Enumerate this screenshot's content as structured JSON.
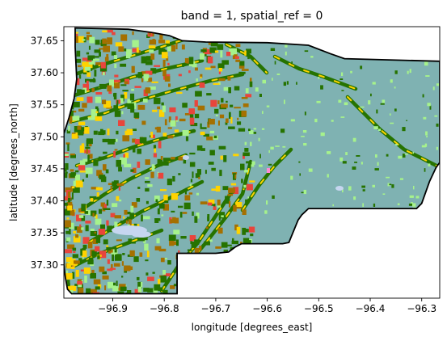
{
  "title": "band = 1, spatial_ref = 0",
  "xlabel": "longitude [degrees_east]",
  "ylabel": "latitude [degrees_north]",
  "x_ticks": [
    {
      "value": -96.9,
      "label": "−96.9"
    },
    {
      "value": -96.8,
      "label": "−96.8"
    },
    {
      "value": -96.7,
      "label": "−96.7"
    },
    {
      "value": -96.6,
      "label": "−96.6"
    },
    {
      "value": -96.5,
      "label": "−96.5"
    },
    {
      "value": -96.4,
      "label": "−96.4"
    },
    {
      "value": -96.3,
      "label": "−96.3"
    }
  ],
  "y_ticks": [
    {
      "value": 37.3,
      "label": "37.30"
    },
    {
      "value": 37.35,
      "label": "37.35"
    },
    {
      "value": 37.4,
      "label": "37.40"
    },
    {
      "value": 37.45,
      "label": "37.45"
    },
    {
      "value": 37.5,
      "label": "37.50"
    },
    {
      "value": 37.55,
      "label": "37.55"
    },
    {
      "value": 37.6,
      "label": "37.60"
    },
    {
      "value": 37.65,
      "label": "37.65"
    }
  ],
  "xlim": [
    -96.995,
    -96.265
  ],
  "ylim": [
    37.248,
    37.672
  ],
  "colors": {
    "grassland": "#7fb2b2",
    "forest": "#267300",
    "crop_yellow": "#ffd300",
    "crop_brown": "#a57000",
    "developed": "#e8453c",
    "light_green": "#a6f28c",
    "water": "#c6d6f0",
    "pink": "#ff8ad2",
    "boundary": "#000000"
  },
  "boundary": [
    [
      -96.973,
      37.67
    ],
    [
      -96.87,
      37.668
    ],
    [
      -96.825,
      37.663
    ],
    [
      -96.79,
      37.658
    ],
    [
      -96.765,
      37.65
    ],
    [
      -96.72,
      37.648
    ],
    [
      -96.6,
      37.647
    ],
    [
      -96.52,
      37.643
    ],
    [
      -96.478,
      37.63
    ],
    [
      -96.45,
      37.622
    ],
    [
      -96.265,
      37.618
    ],
    [
      -96.265,
      37.46
    ],
    [
      -96.272,
      37.452
    ],
    [
      -96.285,
      37.43
    ],
    [
      -96.3,
      37.396
    ],
    [
      -96.31,
      37.388
    ],
    [
      -96.43,
      37.388
    ],
    [
      -96.52,
      37.388
    ],
    [
      -96.533,
      37.378
    ],
    [
      -96.54,
      37.37
    ],
    [
      -96.558,
      37.335
    ],
    [
      -96.57,
      37.333
    ],
    [
      -96.62,
      37.333
    ],
    [
      -96.65,
      37.333
    ],
    [
      -96.662,
      37.328
    ],
    [
      -96.675,
      37.32
    ],
    [
      -96.7,
      37.318
    ],
    [
      -96.775,
      37.318
    ],
    [
      -96.775,
      37.255
    ],
    [
      -96.98,
      37.255
    ],
    [
      -96.988,
      37.262
    ],
    [
      -96.992,
      37.28
    ],
    [
      -96.995,
      37.3
    ],
    [
      -96.995,
      37.505
    ],
    [
      -96.985,
      37.53
    ],
    [
      -96.975,
      37.56
    ],
    [
      -96.97,
      37.59
    ],
    [
      -96.973,
      37.64
    ],
    [
      -96.973,
      37.67
    ]
  ]
}
